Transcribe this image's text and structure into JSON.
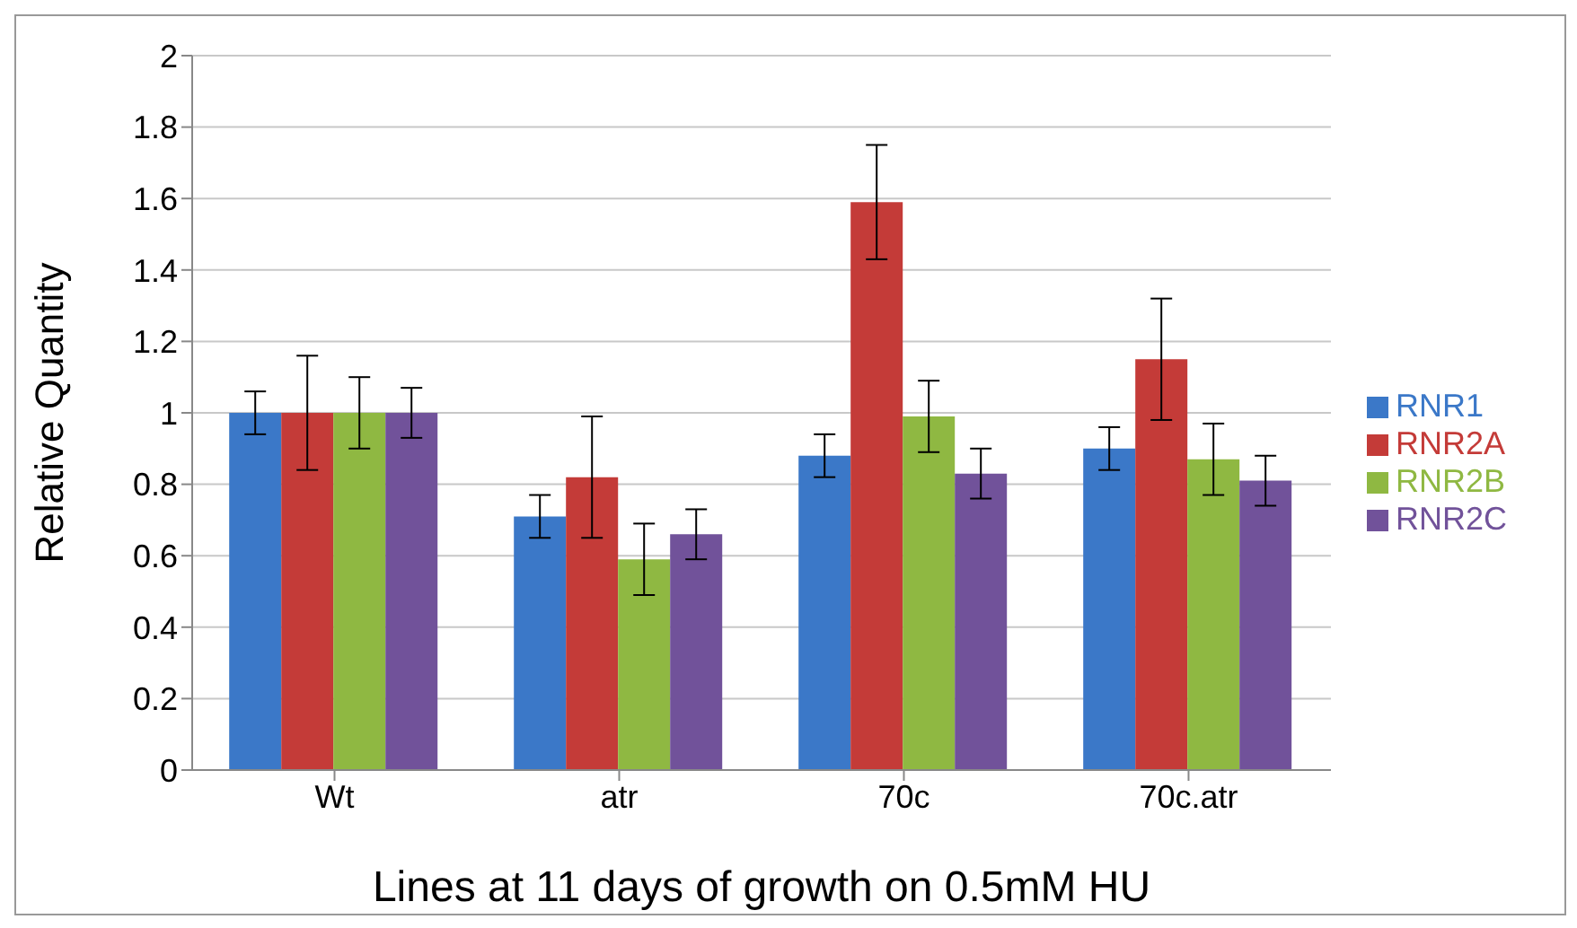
{
  "chart_data": {
    "type": "bar",
    "xlabel": "Lines at 11 days of growth on 0.5mM HU",
    "ylabel": "Relative Quantity",
    "categories": [
      "Wt",
      "atr",
      "70c",
      "70c.atr"
    ],
    "series": [
      {
        "name": "RNR1",
        "color": "#3b78c8",
        "values": [
          1,
          0.71,
          0.88,
          0.9
        ],
        "errors": [
          0.06,
          0.06,
          0.06,
          0.06
        ]
      },
      {
        "name": "RNR2A",
        "color": "#c43b38",
        "values": [
          1,
          0.82,
          1.59,
          1.15
        ],
        "errors": [
          0.16,
          0.17,
          0.16,
          0.17
        ]
      },
      {
        "name": "RNR2B",
        "color": "#8fb842",
        "values": [
          1,
          0.59,
          0.99,
          0.87
        ],
        "errors": [
          0.1,
          0.1,
          0.1,
          0.1
        ]
      },
      {
        "name": "RNR2C",
        "color": "#71529a",
        "values": [
          1,
          0.66,
          0.83,
          0.81
        ],
        "errors": [
          0.07,
          0.07,
          0.07,
          0.07
        ]
      }
    ],
    "ylim": [
      0,
      2
    ],
    "yticks": [
      0,
      0.2,
      0.4,
      0.6,
      0.8,
      1,
      1.2,
      1.4,
      1.6,
      1.8,
      2
    ],
    "grid": "y",
    "legend": "right"
  }
}
